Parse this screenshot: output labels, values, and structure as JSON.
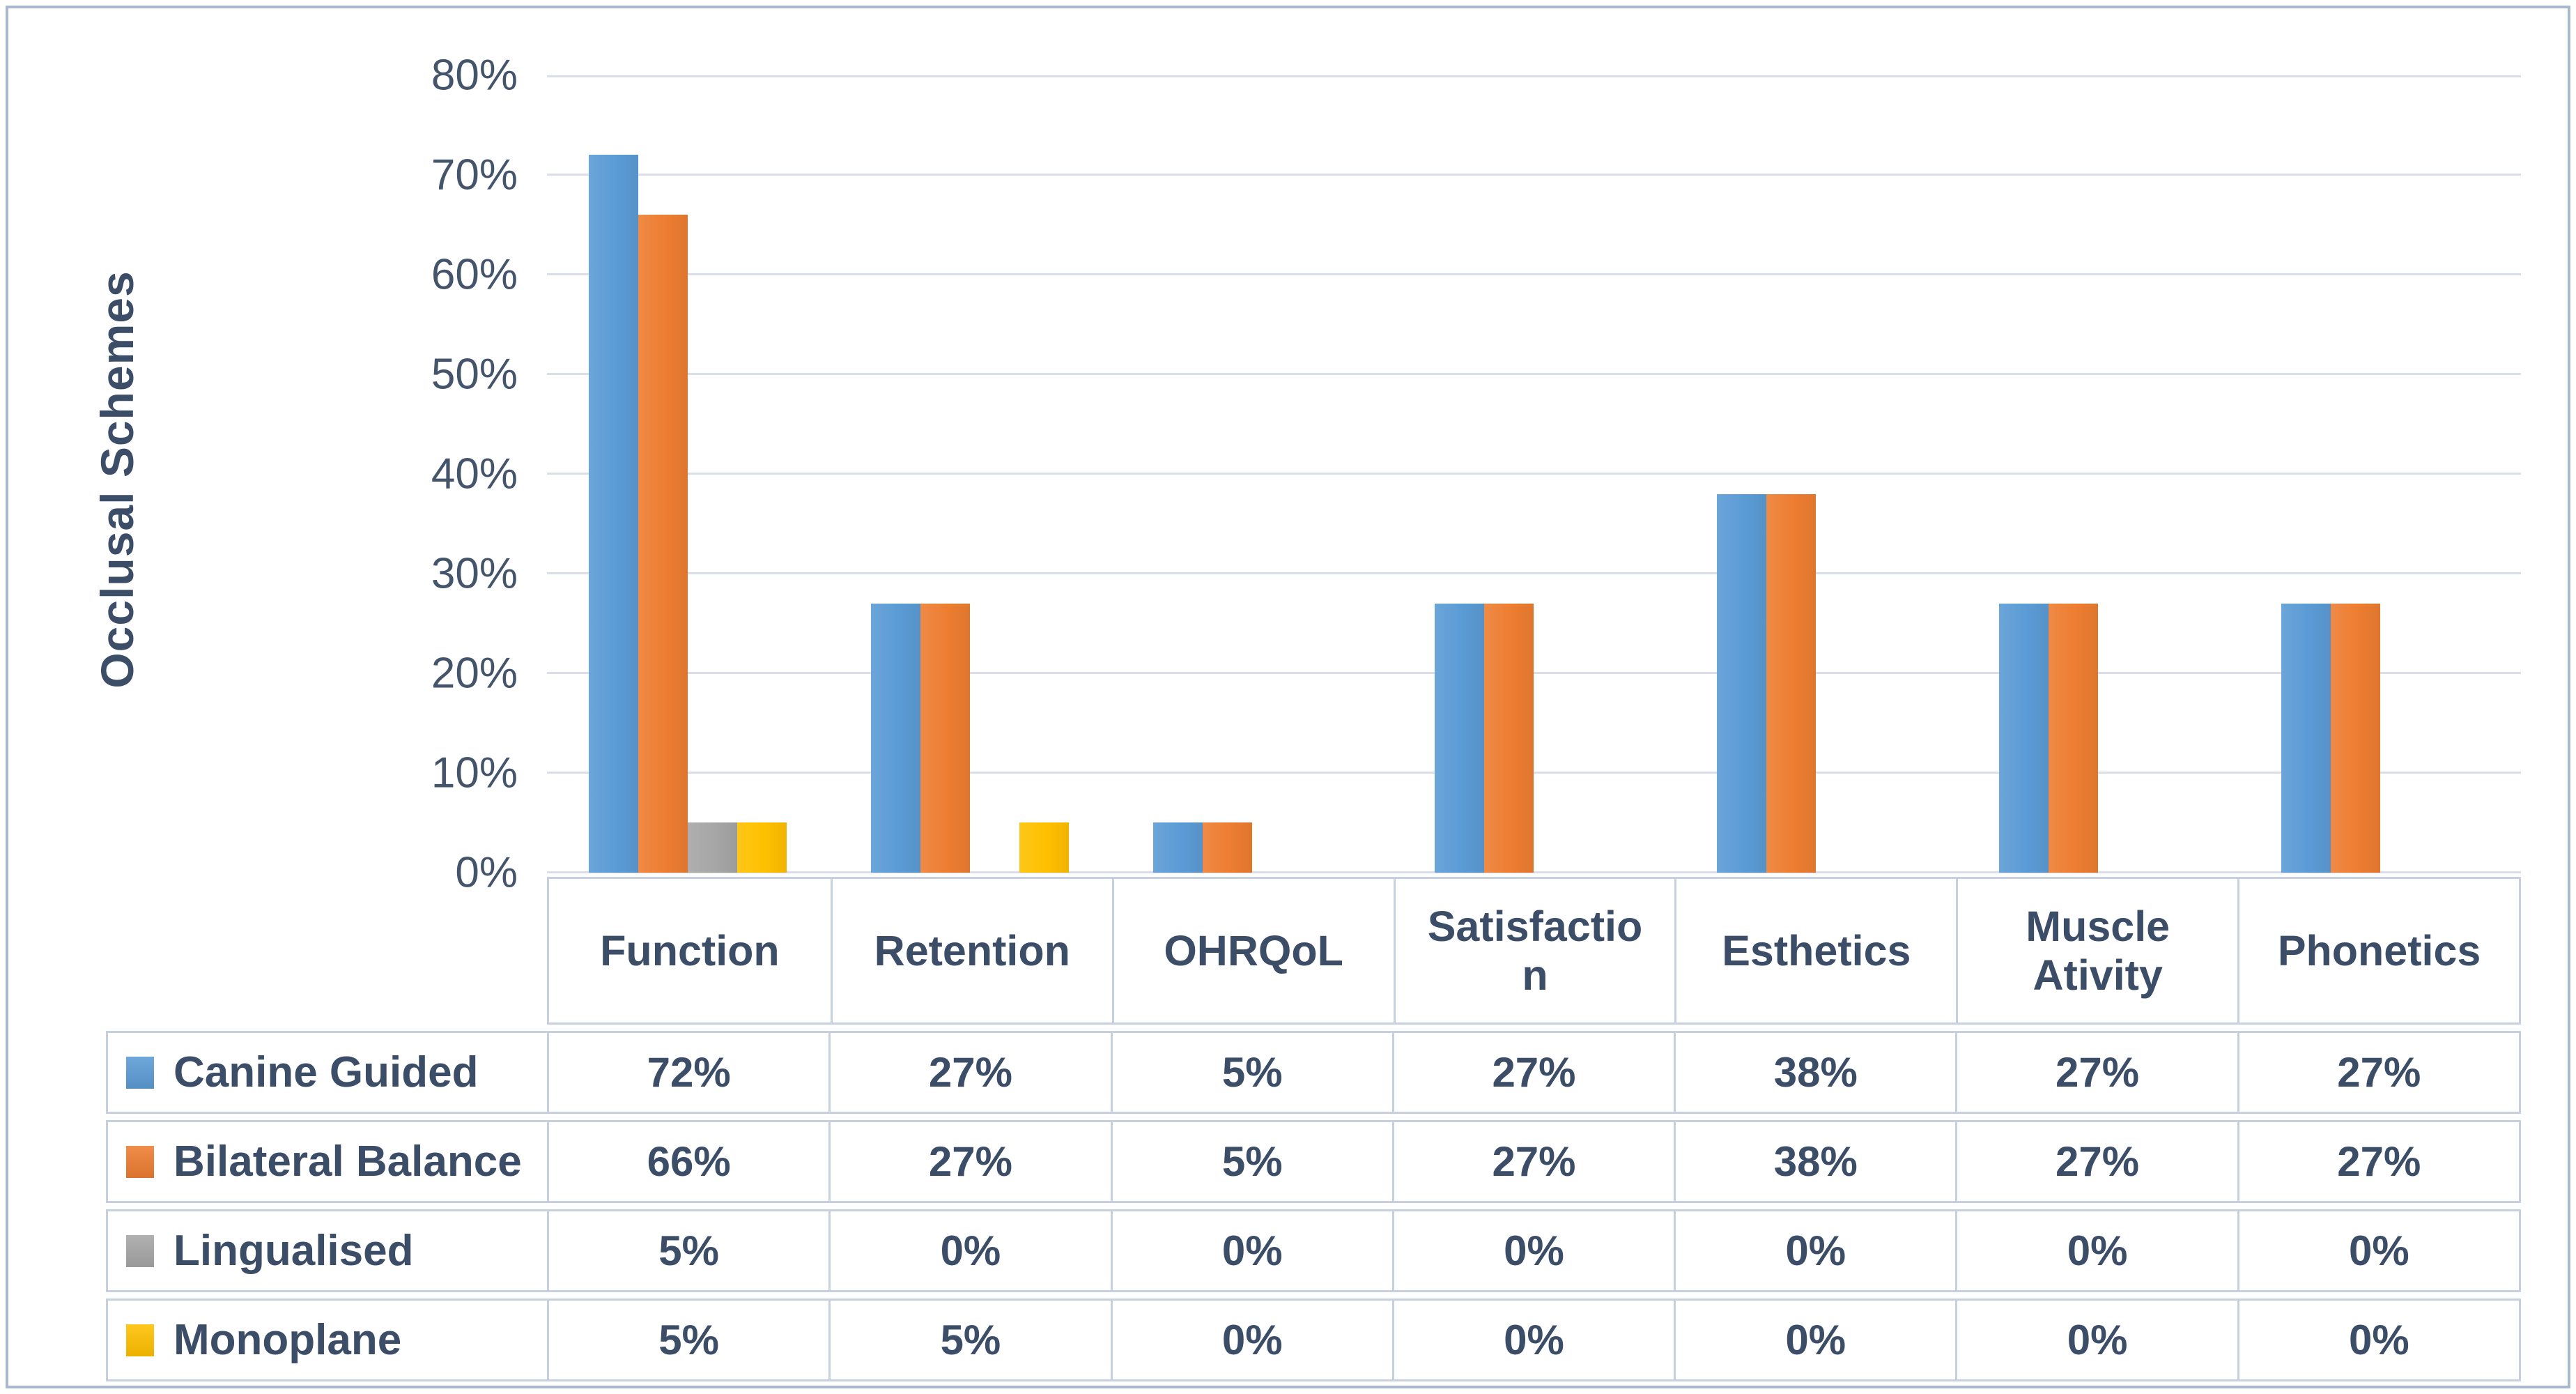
{
  "chart_data": {
    "type": "bar",
    "title": "",
    "xlabel": "",
    "ylabel": "Occlusal Schemes",
    "ylim": [
      0,
      80
    ],
    "y_tick_labels": [
      "0%",
      "10%",
      "20%",
      "30%",
      "40%",
      "50%",
      "60%",
      "70%",
      "80%"
    ],
    "grid": true,
    "legend_position": "table-left",
    "categories": [
      "Function",
      "Retention",
      "OHRQoL",
      "Satisfaction",
      "Esthetics",
      "Muscle Ativity",
      "Phonetics"
    ],
    "series": [
      {
        "name": "Canine Guided",
        "color": "#5B9BD5",
        "values": [
          72,
          27,
          5,
          27,
          38,
          27,
          27
        ]
      },
      {
        "name": "Bilateral Balance",
        "color": "#ED7D31",
        "values": [
          66,
          27,
          5,
          27,
          38,
          27,
          27
        ]
      },
      {
        "name": "Lingualised",
        "color": "#A6A6A6",
        "values": [
          5,
          0,
          0,
          0,
          0,
          0,
          0
        ]
      },
      {
        "name": "Monoplane",
        "color": "#FFC000",
        "values": [
          5,
          5,
          0,
          0,
          0,
          0,
          0
        ]
      }
    ]
  },
  "table": {
    "header_labels": [
      "Function",
      "Retention",
      "OHRQoL",
      "Satisfactio\nn",
      "Esthetics",
      "Muscle\nAtivity",
      "Phonetics"
    ],
    "rows": [
      {
        "label": "Canine Guided",
        "swatch_color": "#5B9BD5",
        "cells": [
          "72%",
          "27%",
          "5%",
          "27%",
          "38%",
          "27%",
          "27%"
        ]
      },
      {
        "label": "Bilateral Balance",
        "swatch_color": "#ED7D31",
        "cells": [
          "66%",
          "27%",
          "5%",
          "27%",
          "38%",
          "27%",
          "27%"
        ]
      },
      {
        "label": "Lingualised",
        "swatch_color": "#A6A6A6",
        "cells": [
          "5%",
          "0%",
          "0%",
          "0%",
          "0%",
          "0%",
          "0%"
        ]
      },
      {
        "label": "Monoplane",
        "swatch_color": "#FFC000",
        "cells": [
          "5%",
          "5%",
          "0%",
          "0%",
          "0%",
          "0%",
          "0%"
        ]
      }
    ]
  },
  "colors": {
    "grid": "#d9dee8",
    "axis_text": "#44546a",
    "table_text": "#3c4d68",
    "table_border": "#c7d0de",
    "outer_border": "#a9b8cc",
    "background": "#ffffff"
  }
}
